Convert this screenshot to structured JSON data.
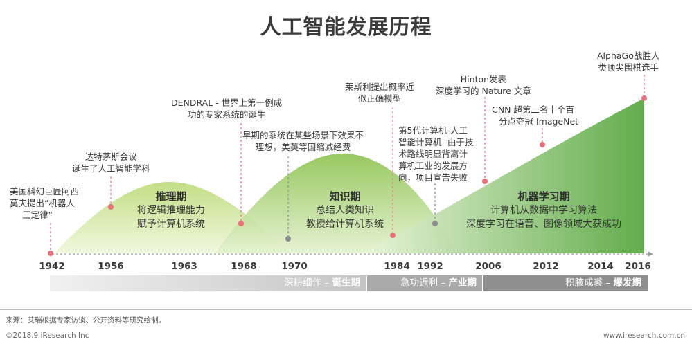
{
  "title": "人工智能发展历程",
  "years": [
    "1942",
    "1956",
    "1963",
    "1968",
    "1970",
    "1984",
    "1992",
    "2006",
    "2012",
    "2014",
    "2016"
  ],
  "phases": [
    {
      "name": "推理期",
      "desc1": "将逻辑推理能力",
      "desc2": "赋予计算机系统"
    },
    {
      "name": "知识期",
      "desc1": "总结人类知识",
      "desc2": "教授给计算机系统"
    },
    {
      "name": "机器学习期",
      "desc1": "计算机从数据中学习算法",
      "desc2": "深度学习在语音、图像领域大获成功"
    }
  ],
  "events": [
    {
      "l1": "美国科幻巨匠阿西",
      "l2": "莫夫提出“机器人",
      "l3": "三定律”"
    },
    {
      "l1": "达特茅斯会议",
      "l2": "诞生了人工智能学科"
    },
    {
      "l1": "DENDRAL - 世界上第一例成",
      "l2": "功的专家系统的诞生"
    },
    {
      "l1": "早期的系统在某些场景下效果不",
      "l2": "理想，美英等国缩减经费"
    },
    {
      "l1": "莱斯利提出概率近",
      "l2": "似正确模型"
    },
    {
      "l1": "第5代计算机-人工",
      "l2": "智能计算机 -由于技",
      "l3": "术路线明显背离计",
      "l4": "算机工业的发展方",
      "l5": "向，项目宣告失败"
    },
    {
      "l1": "Hinton发表",
      "l2": "深度学习的 Nature 文章"
    },
    {
      "l1": "CNN 超第二名十个百",
      "l2": "分点夺冠 ImageNet"
    },
    {
      "l1": "AlphaGo战胜人",
      "l2": "类顶尖围棋选手"
    }
  ],
  "stages": [
    {
      "label": "深耕细作 – ",
      "bold": "诞生期"
    },
    {
      "label": "急功近利 – ",
      "bold": "产业期"
    },
    {
      "label": "积腋成裘 – ",
      "bold": "爆发期"
    }
  ],
  "colors": {
    "light_green": "#c9e28f",
    "mid_green": "#8fc34f",
    "dark_green": "#5ba843",
    "marker": "#e8707b",
    "gray_marker": "#8c8c8c"
  },
  "source": "来源：艾瑞根据专家访谈、公开资料等研究绘制。",
  "footer_left": "©2018.9 iResearch Inc",
  "footer_right": "www.iresearch.com.cn"
}
